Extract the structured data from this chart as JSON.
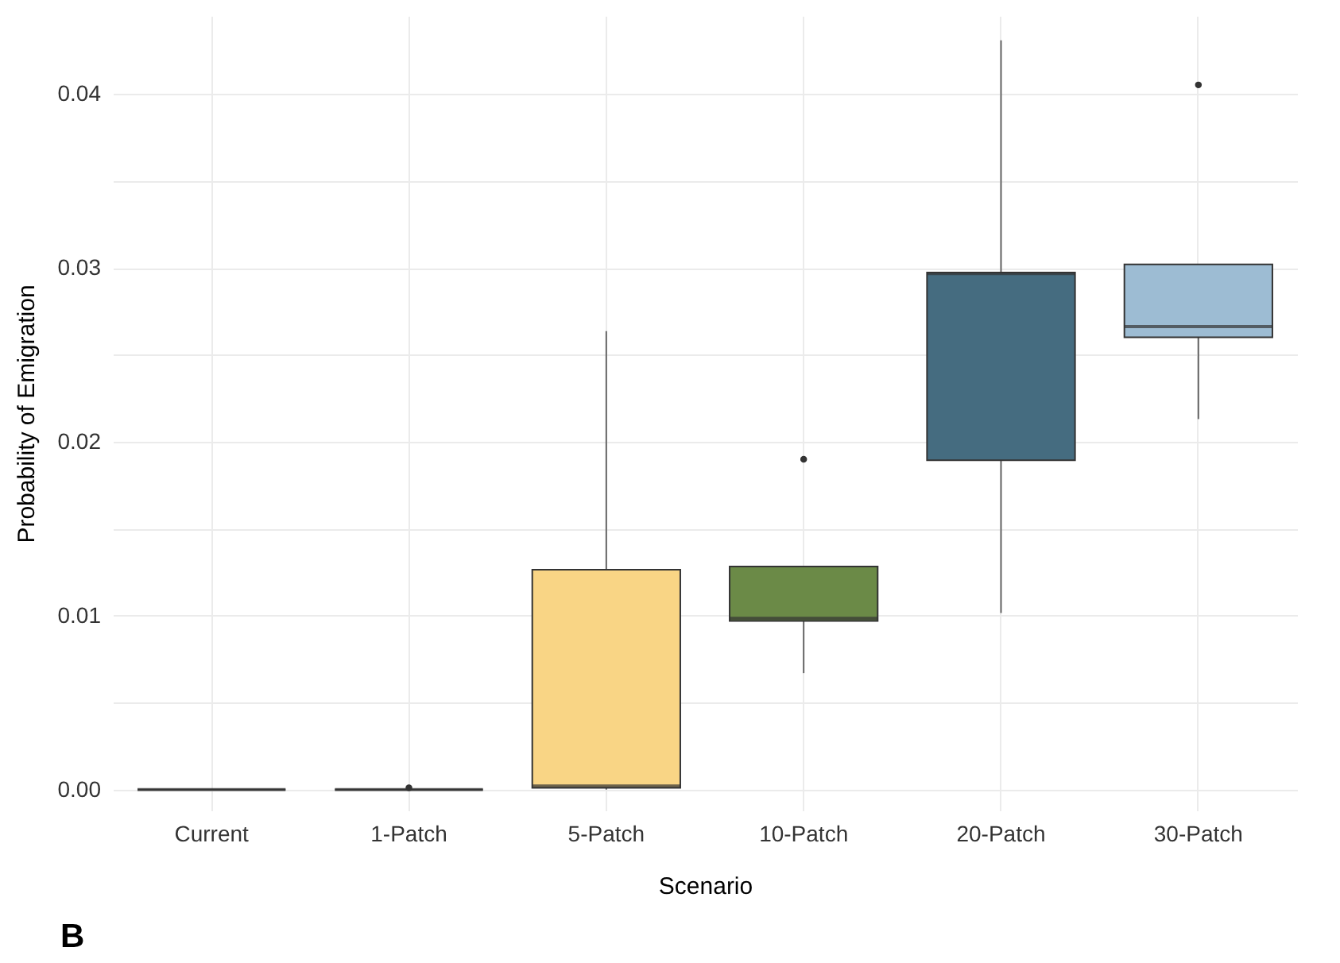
{
  "chart_data": {
    "type": "box",
    "xlabel": "Scenario",
    "ylabel": "Probability of Emigration",
    "categories": [
      "Current",
      "1-Patch",
      "5-Patch",
      "10-Patch",
      "20-Patch",
      "30-Patch"
    ],
    "boxes": [
      {
        "low": 0,
        "q1": 0,
        "median": 0,
        "q3": 0,
        "high": 0
      },
      {
        "low": 0,
        "q1": 0,
        "median": 0,
        "q3": 0,
        "high": 0,
        "outliers": [
          0.0001
        ]
      },
      {
        "low": 0,
        "q1": 0.0001,
        "median": 0.0002,
        "q3": 0.01265,
        "high": 0.02637
      },
      {
        "low": 0.0067,
        "q1": 0.0097,
        "median": 0.00985,
        "q3": 0.01283,
        "high": 0.01283,
        "outliers": [
          0.019
        ]
      },
      {
        "low": 0.01016,
        "q1": 0.01894,
        "median": 0.02968,
        "q3": 0.02974,
        "high": 0.0431
      },
      {
        "low": 0.02131,
        "q1": 0.02601,
        "median": 0.02663,
        "q3": 0.03021,
        "high": 0.03021,
        "outliers": [
          0.04053
        ]
      }
    ],
    "colors": [
      "#333333",
      "#333333",
      "#f9d585",
      "#6b8a47",
      "#456c80",
      "#9dbcd3"
    ],
    "ylim": [
      -0.0012,
      0.0445
    ],
    "yticks": [
      {
        "value": 0,
        "label": "0.00"
      },
      {
        "value": 0.005,
        "label": null
      },
      {
        "value": 0.01,
        "label": "0.01"
      },
      {
        "value": 0.015,
        "label": null
      },
      {
        "value": 0.02,
        "label": "0.02"
      },
      {
        "value": 0.025,
        "label": null
      },
      {
        "value": 0.03,
        "label": "0.03"
      },
      {
        "value": 0.035,
        "label": null
      },
      {
        "value": 0.04,
        "label": "0.04"
      }
    ],
    "grid": true,
    "annotations": [
      "B"
    ]
  }
}
